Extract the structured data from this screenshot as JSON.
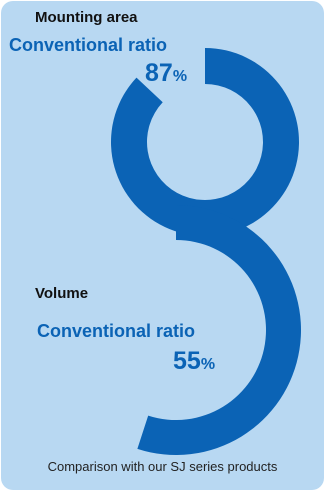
{
  "chart_data": [
    {
      "type": "donut",
      "title": "Mounting area",
      "label": "Conventional ratio",
      "value": 87,
      "unit": "%",
      "color": "#0b63b5"
    },
    {
      "type": "donut",
      "title": "Volume",
      "label": "Conventional ratio",
      "value": 55,
      "unit": "%",
      "color": "#0b63b5"
    }
  ],
  "footer": "Comparison with our SJ series products",
  "colors": {
    "background": "#b8d8f2",
    "accent": "#0b63b5"
  }
}
